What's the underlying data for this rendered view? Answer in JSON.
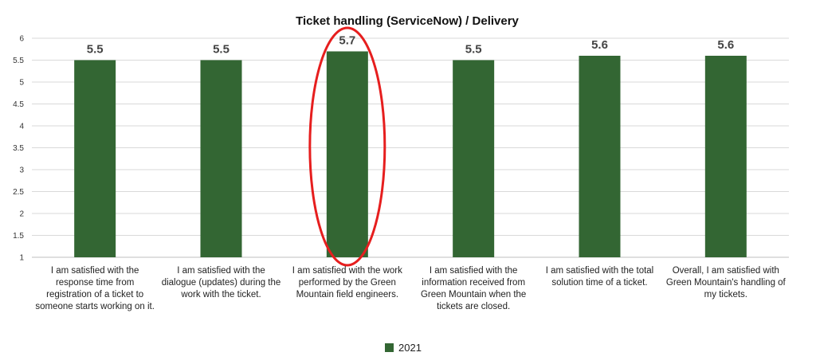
{
  "chart_data": {
    "type": "bar",
    "title": "Ticket handling (ServiceNow) / Delivery",
    "xlabel": "",
    "ylabel": "",
    "ylim": [
      1,
      6
    ],
    "yticks": [
      "1",
      "1.5",
      "2",
      "2.5",
      "3",
      "3.5",
      "4",
      "4.5",
      "5",
      "5.5",
      "6"
    ],
    "grid": true,
    "legend_position": "bottom",
    "categories": [
      "I am satisfied with the response time from registration of a ticket to someone starts working on it.",
      "I am satisfied with the dialogue (updates) during the work with the ticket.",
      "I am satisfied with the work performed by the Green Mountain field engineers.",
      "I am satisfied with the information received from Green Mountain when the tickets are closed.",
      "I am satisfied with the total solution time of a ticket.",
      "Overall, I am satisfied with Green Mountain's handling of my tickets."
    ],
    "series": [
      {
        "name": "2021",
        "color": "#336633",
        "values": [
          5.5,
          5.5,
          5.7,
          5.5,
          5.6,
          5.6
        ],
        "labels": [
          "5.5",
          "5.5",
          "5.7",
          "5.5",
          "5.6",
          "5.6"
        ]
      }
    ],
    "highlight": {
      "category_index": 2,
      "shape": "ellipse",
      "color": "#e61e1e"
    }
  }
}
